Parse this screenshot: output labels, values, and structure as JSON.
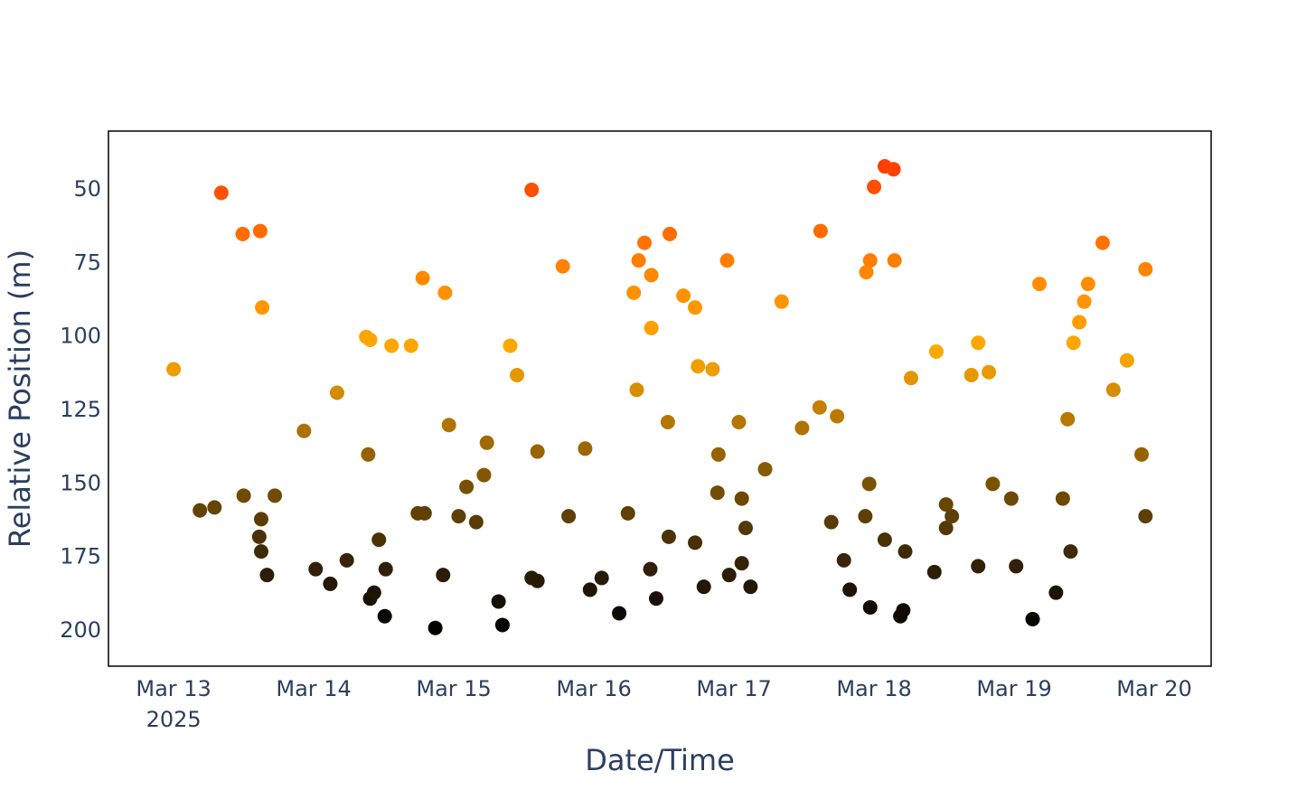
{
  "chart_data": {
    "type": "scatter",
    "x_label": "Date/Time",
    "y_label": "Relative Position (m)",
    "xlim": [
      "2025-03-12T12:50",
      "2025-03-20T09:45"
    ],
    "xticks": [
      {
        "value": "2025-03-13T00:00",
        "label": "Mar 13\n2025"
      },
      {
        "value": "2025-03-14T00:00",
        "label": "Mar 14"
      },
      {
        "value": "2025-03-15T00:00",
        "label": "Mar 15"
      },
      {
        "value": "2025-03-16T00:00",
        "label": "Mar 16"
      },
      {
        "value": "2025-03-17T00:00",
        "label": "Mar 17"
      },
      {
        "value": "2025-03-18T00:00",
        "label": "Mar 18"
      },
      {
        "value": "2025-03-19T00:00",
        "label": "Mar 19"
      },
      {
        "value": "2025-03-20T00:00",
        "label": "Mar 20"
      }
    ],
    "ylim": [
      212,
      30
    ],
    "yticks": [
      50,
      75,
      100,
      125,
      150,
      175,
      200
    ],
    "y_reversed": true,
    "grid": true,
    "minor_grid": {
      "x_hours": 3,
      "y_step": 5
    },
    "colorscale": [
      {
        "value": 40,
        "color": "#ff3c00"
      },
      {
        "value": 80,
        "color": "#ff8a00"
      },
      {
        "value": 105,
        "color": "#ffaa00"
      },
      {
        "value": 125,
        "color": "#c07d00"
      },
      {
        "value": 150,
        "color": "#7a5200"
      },
      {
        "value": 175,
        "color": "#3a2608"
      },
      {
        "value": 200,
        "color": "#000000"
      }
    ],
    "x": [
      "2025-03-13T00:00",
      "2025-03-13T04:30",
      "2025-03-13T07:00",
      "2025-03-13T08:10",
      "2025-03-13T11:50",
      "2025-03-13T12:00",
      "2025-03-13T14:50",
      "2025-03-13T15:10",
      "2025-03-13T14:40",
      "2025-03-13T15:00",
      "2025-03-13T15:00",
      "2025-03-13T16:00",
      "2025-03-13T17:20",
      "2025-03-13T22:20",
      "2025-03-14T00:20",
      "2025-03-14T02:50",
      "2025-03-14T04:00",
      "2025-03-14T05:40",
      "2025-03-14T09:00",
      "2025-03-14T09:40",
      "2025-03-14T09:20",
      "2025-03-14T09:40",
      "2025-03-14T10:20",
      "2025-03-14T11:10",
      "2025-03-14T12:10",
      "2025-03-14T12:20",
      "2025-03-14T13:20",
      "2025-03-14T16:40",
      "2025-03-14T17:50",
      "2025-03-14T19:00",
      "2025-03-14T18:40",
      "2025-03-14T20:50",
      "2025-03-14T22:10",
      "2025-03-14T22:30",
      "2025-03-14T23:10",
      "2025-03-15T00:50",
      "2025-03-15T02:10",
      "2025-03-15T03:50",
      "2025-03-15T05:10",
      "2025-03-15T05:40",
      "2025-03-15T07:40",
      "2025-03-15T08:20",
      "2025-03-15T09:40",
      "2025-03-15T10:50",
      "2025-03-15T13:20",
      "2025-03-15T13:20",
      "2025-03-15T14:20",
      "2025-03-15T14:20",
      "2025-03-15T18:40",
      "2025-03-15T19:40",
      "2025-03-15T22:30",
      "2025-03-15T23:20",
      "2025-03-16T01:20",
      "2025-03-16T04:20",
      "2025-03-16T05:50",
      "2025-03-16T06:50",
      "2025-03-16T07:20",
      "2025-03-16T07:40",
      "2025-03-16T08:40",
      "2025-03-16T09:40",
      "2025-03-16T09:50",
      "2025-03-16T09:50",
      "2025-03-16T10:40",
      "2025-03-16T12:40",
      "2025-03-16T12:50",
      "2025-03-16T13:00",
      "2025-03-16T15:20",
      "2025-03-16T17:20",
      "2025-03-16T17:20",
      "2025-03-16T17:50",
      "2025-03-16T18:50",
      "2025-03-16T20:20",
      "2025-03-16T21:10",
      "2025-03-16T21:20",
      "2025-03-16T22:50",
      "2025-03-16T23:10",
      "2025-03-17T00:50",
      "2025-03-17T01:20",
      "2025-03-17T01:20",
      "2025-03-17T02:00",
      "2025-03-17T02:50",
      "2025-03-17T05:20",
      "2025-03-17T08:10",
      "2025-03-17T11:40",
      "2025-03-17T14:40",
      "2025-03-17T14:50",
      "2025-03-17T16:40",
      "2025-03-17T17:40",
      "2025-03-17T18:50",
      "2025-03-17T19:50",
      "2025-03-17T22:30",
      "2025-03-17T22:40",
      "2025-03-17T23:20",
      "2025-03-17T23:10",
      "2025-03-17T23:20",
      "2025-03-18T00:00",
      "2025-03-18T01:50",
      "2025-03-18T03:20",
      "2025-03-18T01:50",
      "2025-03-18T03:30",
      "2025-03-18T04:30",
      "2025-03-18T05:00",
      "2025-03-18T05:20",
      "2025-03-18T06:20",
      "2025-03-18T10:20",
      "2025-03-18T10:40",
      "2025-03-18T12:20",
      "2025-03-18T12:20",
      "2025-03-18T13:20",
      "2025-03-18T16:40",
      "2025-03-18T17:50",
      "2025-03-18T17:50",
      "2025-03-18T19:40",
      "2025-03-18T20:20",
      "2025-03-18T23:30",
      "2025-03-19T00:20",
      "2025-03-19T03:10",
      "2025-03-19T04:20",
      "2025-03-19T07:10",
      "2025-03-19T08:20",
      "2025-03-19T09:10",
      "2025-03-19T09:40",
      "2025-03-19T10:10",
      "2025-03-19T11:10",
      "2025-03-19T12:00",
      "2025-03-19T12:40",
      "2025-03-19T15:10",
      "2025-03-19T17:00",
      "2025-03-19T19:20",
      "2025-03-19T21:50",
      "2025-03-19T22:30",
      "2025-03-19T22:30"
    ],
    "values": [
      111,
      159,
      158,
      51,
      65,
      154,
      64,
      90,
      168,
      162,
      173,
      181,
      154,
      132,
      179,
      184,
      119,
      176,
      100,
      101,
      140,
      189,
      187,
      169,
      195,
      179,
      103,
      103,
      160,
      160,
      80,
      199,
      181,
      85,
      130,
      161,
      151,
      163,
      147,
      136,
      190,
      198,
      103,
      113,
      50,
      182,
      183,
      139,
      76,
      161,
      138,
      186,
      182,
      194,
      160,
      85,
      118,
      74,
      68,
      179,
      79,
      97,
      189,
      129,
      168,
      65,
      86,
      90,
      170,
      110,
      185,
      111,
      153,
      140,
      74,
      181,
      129,
      155,
      177,
      165,
      185,
      145,
      88,
      131,
      124,
      64,
      163,
      127,
      176,
      186,
      161,
      78,
      74,
      150,
      192,
      49,
      42,
      43,
      169,
      74,
      195,
      193,
      173,
      114,
      180,
      105,
      157,
      165,
      161,
      113,
      102,
      178,
      112,
      150,
      155,
      178,
      196,
      82,
      187,
      155,
      128,
      173,
      102,
      95,
      88,
      82,
      68,
      118,
      108,
      140,
      161,
      77
    ]
  }
}
